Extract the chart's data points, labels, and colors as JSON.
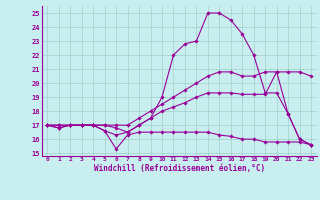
{
  "title": "",
  "xlabel": "Windchill (Refroidissement éolien,°C)",
  "x_ticks": [
    0,
    1,
    2,
    3,
    4,
    5,
    6,
    7,
    8,
    9,
    10,
    11,
    12,
    13,
    14,
    15,
    16,
    17,
    18,
    19,
    20,
    21,
    22,
    23
  ],
  "y_ticks": [
    15,
    16,
    17,
    18,
    19,
    20,
    21,
    22,
    23,
    24,
    25
  ],
  "ylim": [
    14.8,
    25.5
  ],
  "xlim": [
    -0.5,
    23.5
  ],
  "line_color": "#990099",
  "bg_color": "#c8eef0",
  "grid_color": "#a0d0c8",
  "series": [
    [
      17.0,
      16.8,
      17.0,
      17.0,
      17.0,
      16.6,
      15.3,
      16.3,
      16.5,
      16.5,
      16.5,
      16.5,
      16.5,
      16.5,
      16.5,
      16.3,
      16.2,
      16.0,
      16.0,
      15.8,
      15.8,
      15.8,
      15.8,
      15.6
    ],
    [
      17.0,
      16.8,
      17.0,
      17.0,
      17.0,
      16.6,
      16.3,
      16.5,
      17.0,
      17.5,
      18.0,
      18.3,
      18.6,
      19.0,
      19.3,
      19.3,
      19.3,
      19.2,
      19.2,
      19.2,
      20.8,
      17.8,
      16.0,
      15.6
    ],
    [
      17.0,
      17.0,
      17.0,
      17.0,
      17.0,
      17.0,
      17.0,
      17.0,
      17.5,
      18.0,
      18.5,
      19.0,
      19.5,
      20.0,
      20.5,
      20.8,
      20.8,
      20.5,
      20.5,
      20.8,
      20.8,
      20.8,
      20.8,
      20.5
    ],
    [
      17.0,
      17.0,
      17.0,
      17.0,
      17.0,
      17.0,
      16.8,
      16.5,
      17.0,
      17.5,
      19.0,
      22.0,
      22.8,
      23.0,
      25.0,
      25.0,
      24.5,
      23.5,
      22.0,
      19.3,
      19.3,
      17.8,
      16.0,
      15.6
    ]
  ]
}
